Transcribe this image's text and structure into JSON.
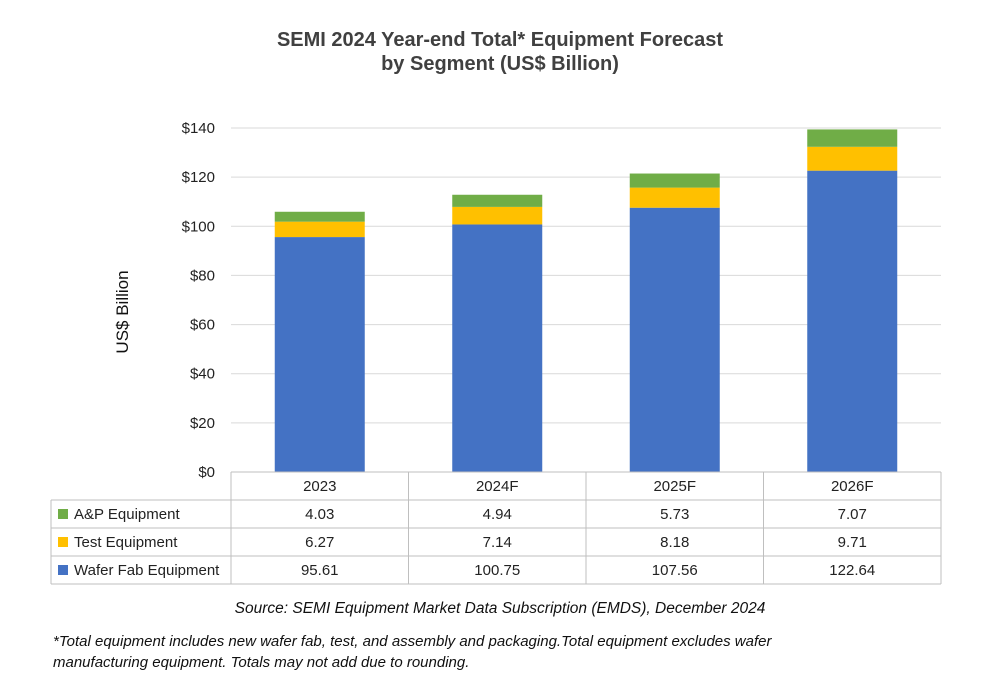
{
  "chart_data": {
    "type": "bar",
    "stacked": true,
    "title_lines": [
      "SEMI 2024 Year-end Total* Equipment Forecast",
      "by Segment (US$ Billion)"
    ],
    "ylabel": "US$ Billion",
    "ylim": [
      0,
      140
    ],
    "y_ticks": [
      0,
      20,
      40,
      60,
      80,
      100,
      120,
      140
    ],
    "y_tick_labels": [
      "$0",
      "$20",
      "$40",
      "$60",
      "$80",
      "$100",
      "$120",
      "$140"
    ],
    "grid": true,
    "categories": [
      "2023",
      "2024F",
      "2025F",
      "2026F"
    ],
    "series": [
      {
        "name": "Wafer Fab Equipment",
        "color": "#4472C4",
        "values": [
          95.61,
          100.75,
          107.56,
          122.64
        ],
        "labels": [
          "95.61",
          "100.75",
          "107.56",
          "122.64"
        ]
      },
      {
        "name": "Test Equipment",
        "color": "#FFC000",
        "values": [
          6.27,
          7.14,
          8.18,
          9.71
        ],
        "labels": [
          "6.27",
          "7.14",
          "8.18",
          "9.71"
        ]
      },
      {
        "name": "A&P Equipment",
        "color": "#70AD47",
        "values": [
          4.03,
          4.94,
          5.73,
          7.07
        ],
        "labels": [
          "4.03",
          "4.94",
          "5.73",
          "7.07"
        ]
      }
    ],
    "data_table_order": [
      "A&P Equipment",
      "Test Equipment",
      "Wafer Fab Equipment"
    ]
  },
  "source_note": "Source: SEMI Equipment Market Data Subscription (EMDS), December 2024",
  "footnote_lines": [
    "*Total equipment includes new wafer fab, test, and assembly and packaging.Total equipment excludes wafer",
    "manufacturing equipment. Totals may not add due to rounding."
  ]
}
